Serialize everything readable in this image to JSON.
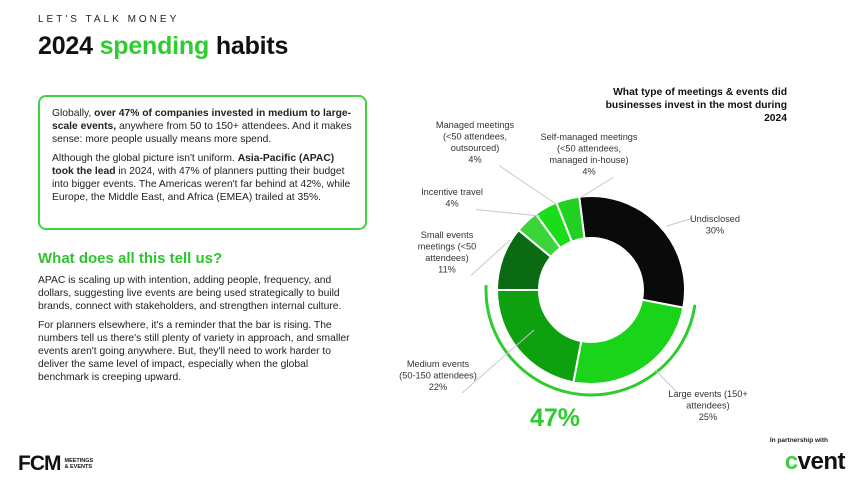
{
  "header": {
    "kicker": "LET'S TALK MONEY",
    "title_pre": "2024 ",
    "title_accent": "spending",
    "title_post": " habits"
  },
  "callout": {
    "p1_a": "Globally, ",
    "p1_b": "over 47% of companies invested in medium to large-scale events,",
    "p1_c": " anywhere from 50 to 150+ attendees. And it makes sense: more people usually means more spend.",
    "p2_a": "Although the global picture isn't uniform. ",
    "p2_b": "Asia-Pacific (APAC) took the lead",
    "p2_c": " in 2024, with 47% of planners putting their budget into bigger events. The Americas weren't far behind at 42%, while Europe, the Middle East, and Africa (EMEA) trailed at 35%."
  },
  "section": {
    "heading": "What does all this tell us?",
    "p1": "APAC is scaling up with intention, adding people, frequency, and dollars, suggesting live events are being used strategically to build brands, connect with stakeholders, and strengthen internal culture.",
    "p2": "For planners elsewhere, it's a reminder that the bar is rising. The numbers tell us there's still plenty of variety in approach, and smaller events aren't going anywhere. But, they'll need to work harder to deliver the same level of impact, especially when the global benchmark is creeping upward."
  },
  "highlight": {
    "value": "47%"
  },
  "colors": {
    "accent": "#2fcc2f",
    "undisclosed": "#0a0a0a",
    "large": "#1ad41a",
    "medium": "#0fa00f",
    "small": "#0b6b12",
    "incentive": "#3bd43b",
    "managed": "#18dd18",
    "self_managed": "#22d022"
  },
  "chart_data": {
    "type": "pie",
    "title": "What type of meetings & events did businesses invest in the most during 2024",
    "categories": [
      "Undisclosed",
      "Large events (150+ attendees)",
      "Medium events (50-150 attendees)",
      "Small events meetings (<50 attendees)",
      "Incentive travel",
      "Managed meetings (<50 attendees, outsourced)",
      "Self-managed meetings (<50 attendees, managed in-house)"
    ],
    "values": [
      30,
      25,
      22,
      11,
      4,
      4,
      4
    ],
    "labels": [
      [
        "Undisclosed",
        "30%"
      ],
      [
        "Large events (150+",
        "attendees)",
        "25%"
      ],
      [
        "Medium events",
        "(50-150 attendees)",
        "22%"
      ],
      [
        "Small events",
        "meetings (<50",
        "attendees)",
        "11%"
      ],
      [
        "Incentive travel",
        "4%"
      ],
      [
        "Managed meetings",
        "(<50 attendees,",
        "outsourced)",
        "4%"
      ],
      [
        "Self-managed meetings",
        "(<50 attendees,",
        "managed in-house)",
        "4%"
      ]
    ],
    "highlight_value": "47%"
  },
  "footer": {
    "brand": "FCM",
    "brand_sub_1": "MEETINGS",
    "brand_sub_2": "& EVENTS",
    "partner_text": "In partnership with",
    "partner_brand_c": "c",
    "partner_brand_rest": "vent"
  }
}
